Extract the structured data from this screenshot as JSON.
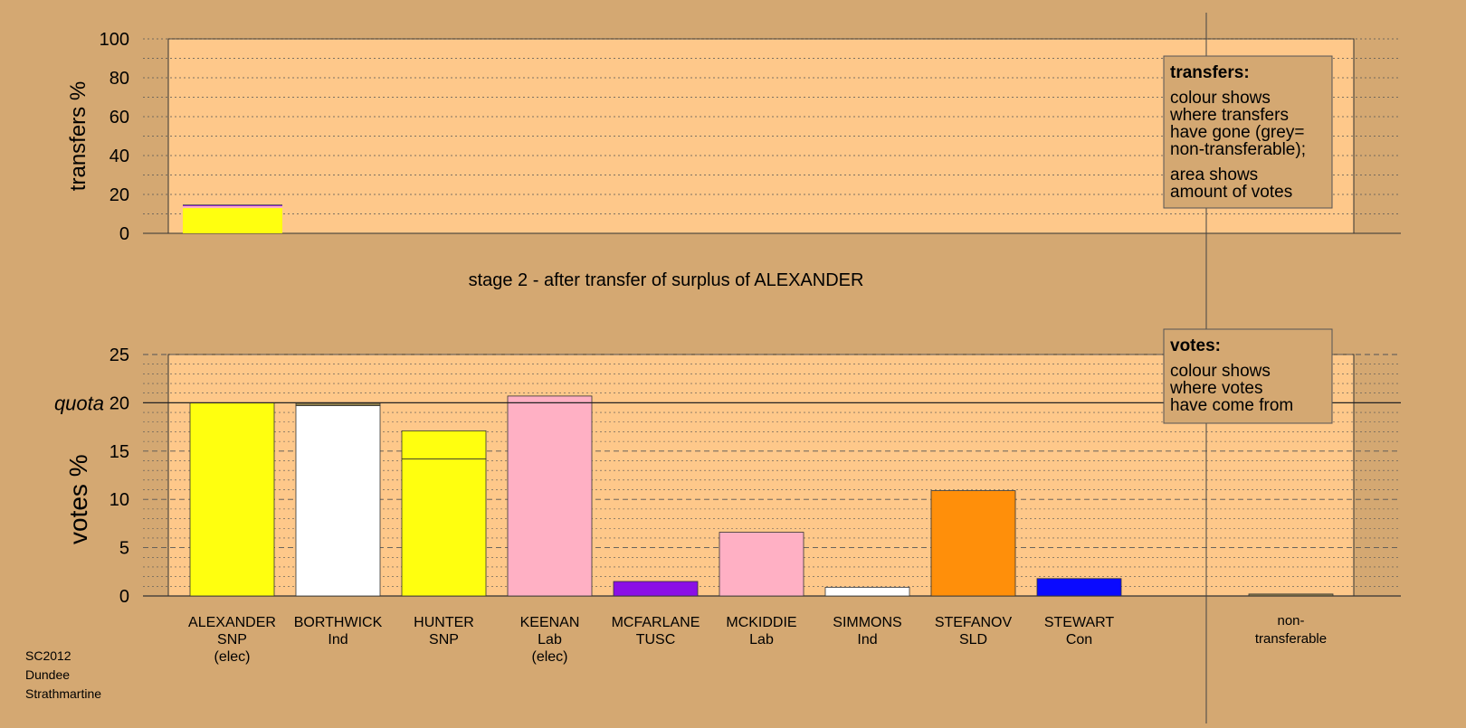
{
  "colors": {
    "background": "#d4a872",
    "plot_area": "#fec88a",
    "border": "#333333",
    "yellow_snp": "#ffff0f",
    "white_ind": "#ffffff",
    "pink_lab": "#ffb0c4",
    "purple_tusc": "#8b0fe6",
    "orange_sld": "#ff8f0a",
    "blue_con": "#0a0aff",
    "nontransferable": "#8a7a4a"
  },
  "stage_title": "stage 2 - after transfer of surplus of ALEXANDER",
  "footer": {
    "line1": "SC2012",
    "line2": "Dundee",
    "line3": "Strathmartine"
  },
  "transfers_legend": {
    "title": "transfers:",
    "lines": [
      "colour shows",
      "where transfers",
      "have gone (grey=",
      "non-transferable);"
    ],
    "lines2": [
      "area shows",
      "amount of votes"
    ]
  },
  "votes_legend": {
    "title": "votes:",
    "lines": [
      "colour shows",
      "where votes",
      "have come from"
    ]
  },
  "chart_data": [
    {
      "id": "transfers",
      "type": "bar",
      "ylabel": "transfers %",
      "ylim": [
        0,
        100
      ],
      "yticks": [
        0,
        20,
        40,
        60,
        80,
        100
      ],
      "grid": true,
      "categories": [
        "ALEXANDER"
      ],
      "bars": [
        {
          "category": "ALEXANDER",
          "segments": [
            {
              "value": 13,
              "color": "#ffff0f"
            },
            {
              "value": 1,
              "color": "#ffb0c4"
            },
            {
              "value": 0.6,
              "color": "#8b0fe6"
            }
          ]
        }
      ]
    },
    {
      "id": "votes",
      "type": "bar",
      "ylabel": "votes %",
      "ylim": [
        0,
        25
      ],
      "yticks": [
        0,
        5,
        10,
        15,
        20,
        25
      ],
      "quota": 20,
      "quota_label": "quota",
      "grid": true,
      "candidates": [
        {
          "name": "ALEXANDER",
          "party": "SNP",
          "note": "(elec)",
          "segments": [
            {
              "value": 20,
              "color": "#ffff0f"
            }
          ]
        },
        {
          "name": "BORTHWICK",
          "party": "Ind",
          "note": "",
          "segments": [
            {
              "value": 19.7,
              "color": "#ffffff"
            },
            {
              "value": 0.3,
              "color": "#8a7a4a"
            }
          ]
        },
        {
          "name": "HUNTER",
          "party": "SNP",
          "note": "",
          "segments": [
            {
              "value": 14.2,
              "color": "#ffff0f"
            },
            {
              "value": 2.9,
              "color": "#ffff0f"
            }
          ]
        },
        {
          "name": "KEENAN",
          "party": "Lab",
          "note": "(elec)",
          "segments": [
            {
              "value": 20.7,
              "color": "#ffb0c4"
            }
          ]
        },
        {
          "name": "MCFARLANE",
          "party": "TUSC",
          "note": "",
          "segments": [
            {
              "value": 1.5,
              "color": "#8b0fe6"
            }
          ]
        },
        {
          "name": "MCKIDDIE",
          "party": "Lab",
          "note": "",
          "segments": [
            {
              "value": 6.6,
              "color": "#ffb0c4"
            }
          ]
        },
        {
          "name": "SIMMONS",
          "party": "Ind",
          "note": "",
          "segments": [
            {
              "value": 0.9,
              "color": "#ffffff"
            }
          ]
        },
        {
          "name": "STEFANOV",
          "party": "SLD",
          "note": "",
          "segments": [
            {
              "value": 10.9,
              "color": "#ff8f0a"
            }
          ]
        },
        {
          "name": "STEWART",
          "party": "Con",
          "note": "",
          "segments": [
            {
              "value": 1.8,
              "color": "#0a0aff"
            }
          ]
        }
      ],
      "nontransferable": {
        "label1": "non-",
        "label2": "transferable",
        "value": 0.2,
        "color": "#8a7a4a"
      }
    }
  ]
}
